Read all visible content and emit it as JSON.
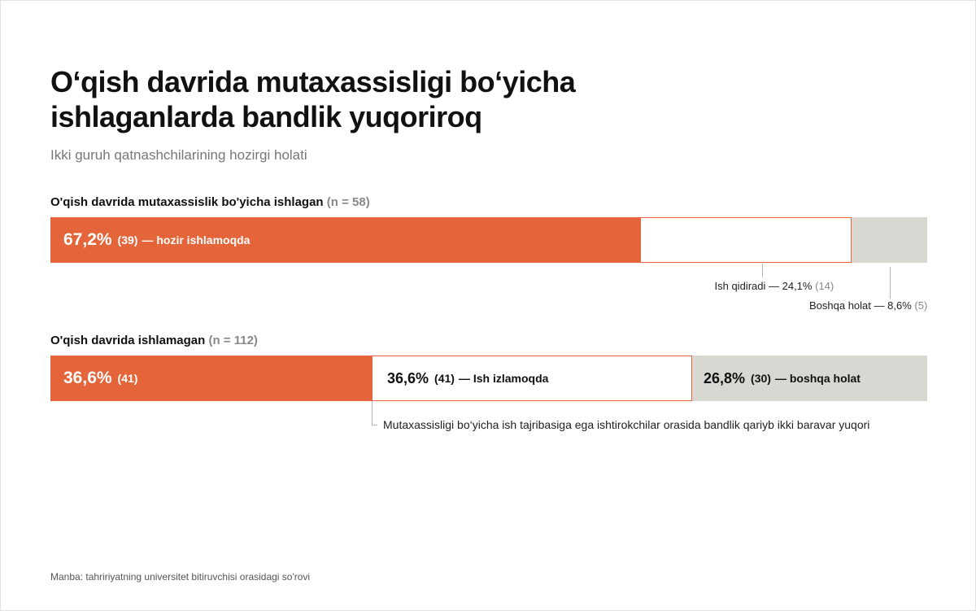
{
  "chart_data": {
    "type": "bar",
    "title": "O‘qish davrida mutaxassisligi bo‘yicha ishlaganlarda bandlik yuqoriroq",
    "title_lines": [
      "O‘qish davrida mutaxassisligi bo‘yicha",
      "ishlaganlarda bandlik yuqoriroq"
    ],
    "subtitle": "Ikki guruh qatnashchilarining hozirgi holati",
    "stacked": true,
    "orientation": "horizontal",
    "xlim": [
      0,
      100
    ],
    "groups": [
      {
        "label": "O'qish davrida mutaxassislik bo'yicha ishlagan",
        "n_label": "(n = 58)",
        "segments": [
          {
            "value": 67.2,
            "value_label": "67,2%",
            "count_label": "(39)",
            "text": "— hozir ishlamoqda",
            "color": "#e5653a"
          },
          {
            "value": 24.1,
            "value_label": "24,1%",
            "count_label": "(14)",
            "text": "Ish qidiradi —",
            "color": "#ffffff"
          },
          {
            "value": 8.6,
            "value_label": "8,6%",
            "count_label": "(5)",
            "text": "Boshqa holat —",
            "color": "#d9d7d1"
          }
        ]
      },
      {
        "label": "O'qish davrida ishlamagan",
        "n_label": "(n = 112)",
        "segments": [
          {
            "value": 36.6,
            "value_label": "36,6%",
            "count_label": "(41)",
            "text": "",
            "color": "#e5653a"
          },
          {
            "value": 36.6,
            "value_label": "36,6%",
            "count_label": "(41)",
            "text": "— Ish izlamoqda",
            "color": "#ffffff"
          },
          {
            "value": 26.8,
            "value_label": "26,8%",
            "count_label": "(30)",
            "text": "— boshqa holat",
            "color": "#d9d7d1"
          }
        ]
      }
    ],
    "annotation": "Mutaxassisligi bo‘yicha ish tajribasiga ega ishtirokchilar orasida bandlik qariyb ikki baravar yuqori",
    "source": "Manba: tahririyatning universitet bitiruvchisi orasidagi so'rovi"
  }
}
